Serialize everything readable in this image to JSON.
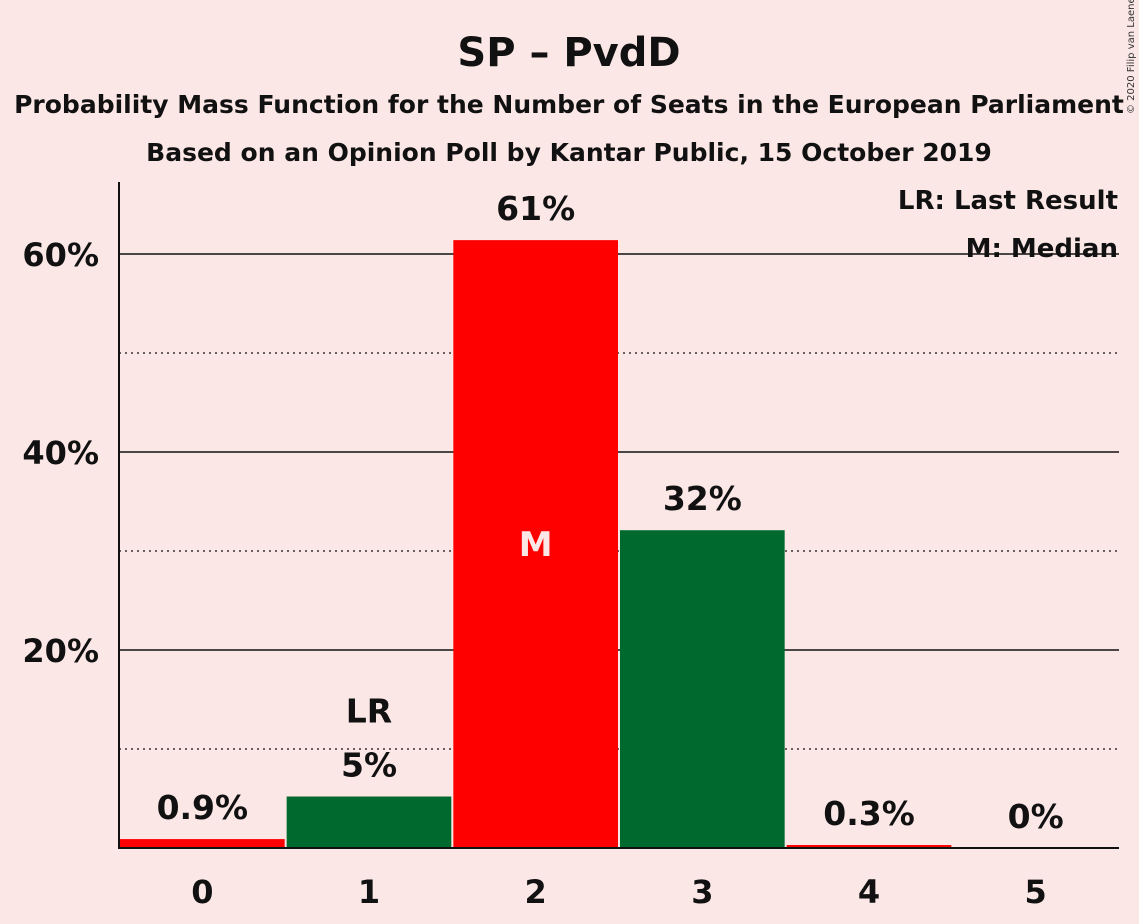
{
  "chart_data": {
    "type": "bar",
    "title": "SP – PvdD",
    "subtitle": "Probability Mass Function for the Number of Seats in the European Parliament",
    "subtitle2": "Based on an Opinion Poll by Kantar Public, 15 October 2019",
    "copyright": "© 2020 Filip van Laenen",
    "categories": [
      "0",
      "1",
      "2",
      "3",
      "4",
      "5"
    ],
    "values": [
      0.9,
      5.2,
      61.4,
      32.1,
      0.3,
      0.0
    ],
    "value_labels": [
      "0.9%",
      "5%",
      "61%",
      "32%",
      "0.3%",
      "0%"
    ],
    "bar_colors": [
      "#ff0000",
      "#006a2e",
      "#ff0000",
      "#006a2e",
      "#ff0000",
      "#006a2e"
    ],
    "last_result_index": 1,
    "median_index": 2,
    "last_result_marker": "LR",
    "median_marker": "M",
    "legend": [
      "LR: Last Result",
      "M: Median"
    ],
    "legend_position": "top-right",
    "yticks": [
      20,
      40,
      60
    ],
    "ytick_labels": [
      "20%",
      "40%",
      "60%"
    ],
    "ylim": [
      0,
      67
    ],
    "grid": true
  }
}
